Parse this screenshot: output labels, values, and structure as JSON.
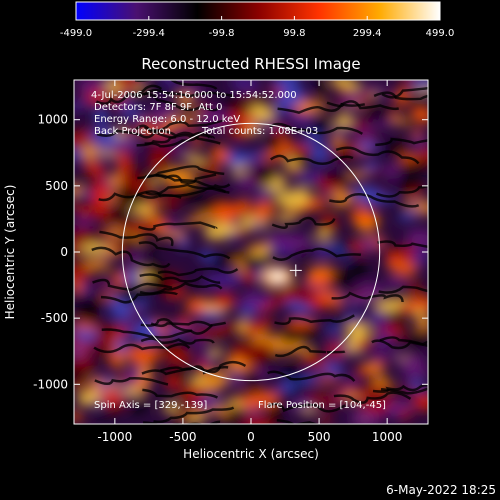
{
  "colorbar": {
    "ticks": [
      "-499.0",
      "-299.4",
      "-99.8",
      "99.8",
      "299.4",
      "499.0"
    ],
    "tick_values": [
      -499.0,
      -299.4,
      -99.8,
      99.8,
      299.4,
      499.0
    ],
    "range": [
      -499.0,
      499.0
    ],
    "stops": [
      "#0000ff",
      "#4a1070",
      "#000000",
      "#8a0000",
      "#ff3300",
      "#ffaa00",
      "#ffffff"
    ]
  },
  "plot": {
    "title": "Reconstructed RHESSI Image",
    "info": {
      "time": "4-Jul-2006 15:54:16.000 to 15:54:52.000",
      "detectors": "Detectors: 7F 8F 9F, Att 0",
      "energy": "Energy Range: 6.0 - 12.0 keV",
      "method": "Back Projection",
      "counts": "Total counts: 1.08E+03"
    },
    "spin_axis": "Spin Axis = [329,-139]",
    "flare_position": "Flare Position = [104,-45]",
    "xlabel": "Heliocentric X (arcsec)",
    "ylabel": "Heliocentric Y (arcsec)",
    "xlim": [
      -1300,
      1300
    ],
    "ylim": [
      -1300,
      1300
    ],
    "xticks": [
      -1000,
      -500,
      0,
      500,
      1000
    ],
    "yticks": [
      -1000,
      -500,
      0,
      500,
      1000
    ],
    "limb_radius": 945,
    "cross_position": [
      329,
      -139
    ]
  },
  "footer": {
    "date": "6-May-2022 18:25"
  }
}
